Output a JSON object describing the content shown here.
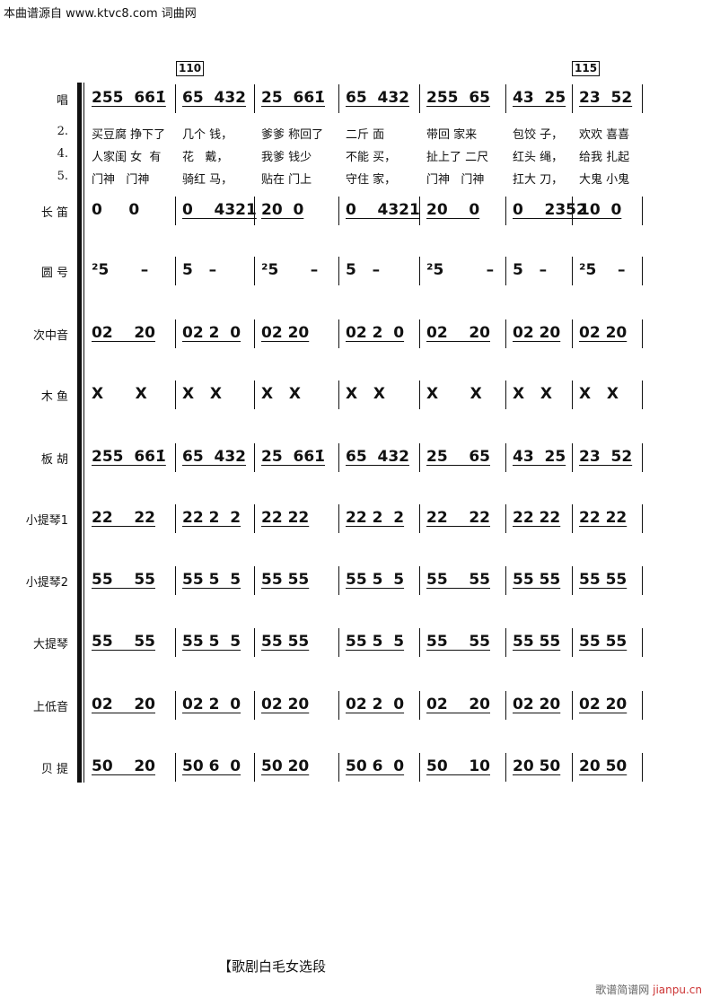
{
  "header": "本曲谱源自 www.ktvc8.com 词曲网",
  "rehearsal_marks": [
    "110",
    "115"
  ],
  "verse_numbers": [
    "2.",
    "4.",
    "5."
  ],
  "lyrics": [
    [
      "买豆腐 挣下了",
      "几个 钱，",
      "爹爹 称回了",
      "二斤 面",
      "带回 家来",
      "包饺 子，",
      "欢欢 喜喜"
    ],
    [
      "人家闺 女  有",
      "花   戴，",
      "我爹 钱少",
      "不能 买，",
      "扯上了 二尺",
      "红头 绳，",
      "给我 扎起"
    ],
    [
      "门神   门神",
      "骑红 马，",
      "贴在 门上",
      "守住 家，",
      "门神   门神",
      "扛大 刀，",
      "大鬼 小鬼"
    ]
  ],
  "rows": [
    {
      "label": "唱",
      "measures": [
        "255  661̇",
        "65  432",
        "25  661̇",
        "65  432",
        "255  65",
        "43  25",
        "23  52"
      ]
    },
    {
      "label": "长    笛",
      "measures": [
        "0     0",
        "0    4321",
        "20  0",
        "0    4321",
        "20    0",
        "0    2352",
        "10  0"
      ]
    },
    {
      "label": "圆    号",
      "measures": [
        "²5      –",
        "5   –",
        "²5      –",
        "5   –",
        "²5        –",
        "5   –",
        "²5    –"
      ]
    },
    {
      "label": "次中音",
      "measures": [
        "02    20",
        "02 2  0",
        "02 20",
        "02 2  0",
        "02    20",
        "02 20",
        "02 20"
      ]
    },
    {
      "label": "木    鱼",
      "measures": [
        "X      X",
        "X   X",
        "X   X",
        "X   X",
        "X      X",
        "X   X",
        "X   X"
      ]
    },
    {
      "label": "板    胡",
      "measures": [
        "255  661̇",
        "65  432",
        "25  661̇",
        "65  432",
        "25    65",
        "43  25",
        "23  52"
      ]
    },
    {
      "label": "小提琴1",
      "measures": [
        "22    22",
        "22 2  2",
        "22 22",
        "22 2  2",
        "22    22",
        "22 22",
        "22 22"
      ]
    },
    {
      "label": "小提琴2",
      "measures": [
        "55    55",
        "55 5  5",
        "55 55",
        "55 5  5",
        "55    55",
        "55 55",
        "55 55"
      ]
    },
    {
      "label": "大提琴",
      "measures": [
        "55    55",
        "55 5  5",
        "55 55",
        "55 5  5",
        "55    55",
        "55 55",
        "55 55"
      ]
    },
    {
      "label": "上低音",
      "measures": [
        "02    20",
        "02 2  0",
        "02 20",
        "02 2  0",
        "02    20",
        "02 20",
        "02 20"
      ]
    },
    {
      "label": "贝    提",
      "measures": [
        "50    20",
        "50 6  0",
        "50 20",
        "50 6  0",
        "50    10",
        "20 50",
        "20 50"
      ]
    }
  ],
  "footer": "【歌剧白毛女选段",
  "watermark": {
    "text": "歌谱简谱网",
    "site": "jianpu.cn"
  }
}
